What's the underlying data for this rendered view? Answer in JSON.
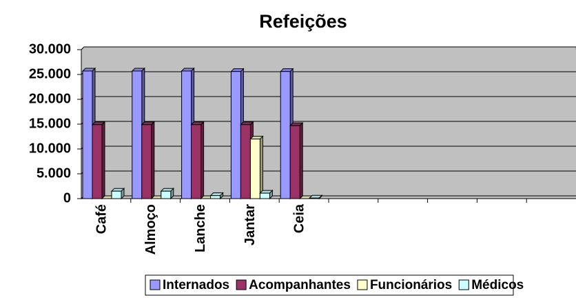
{
  "chart_data": {
    "type": "bar",
    "title": "Refeições",
    "categories": [
      "Café",
      "Almoço",
      "Lanche",
      "Jantar",
      "Ceia",
      null,
      null,
      null,
      null,
      null
    ],
    "series": [
      {
        "name": "Internados",
        "color": "#9999ff",
        "values": [
          25700,
          25700,
          25700,
          25600,
          25600,
          null,
          null,
          null,
          null,
          null
        ]
      },
      {
        "name": "Acompanhantes",
        "color": "#993366",
        "values": [
          14900,
          14900,
          14900,
          14900,
          14700,
          null,
          null,
          null,
          null,
          null
        ]
      },
      {
        "name": "Funcionários",
        "color": "#ffffcc",
        "values": [
          0,
          0,
          0,
          12000,
          0,
          null,
          null,
          null,
          null,
          null
        ]
      },
      {
        "name": "Médicos",
        "color": "#ccffff",
        "values": [
          1500,
          1500,
          600,
          1100,
          100,
          null,
          null,
          null,
          null,
          null
        ]
      }
    ],
    "ylim": [
      0,
      30000
    ],
    "yticks": [
      0,
      {
        "value": 5000,
        "label": "5.000"
      },
      {
        "value": 10000,
        "label": "10.000"
      },
      {
        "value": 15000,
        "label": "15.000"
      },
      {
        "value": 20000,
        "label": "20.000"
      },
      {
        "value": 25000,
        "label": "25.000"
      },
      {
        "value": 30000,
        "label": "30.000"
      }
    ],
    "grid": true,
    "legend": "bottom"
  }
}
